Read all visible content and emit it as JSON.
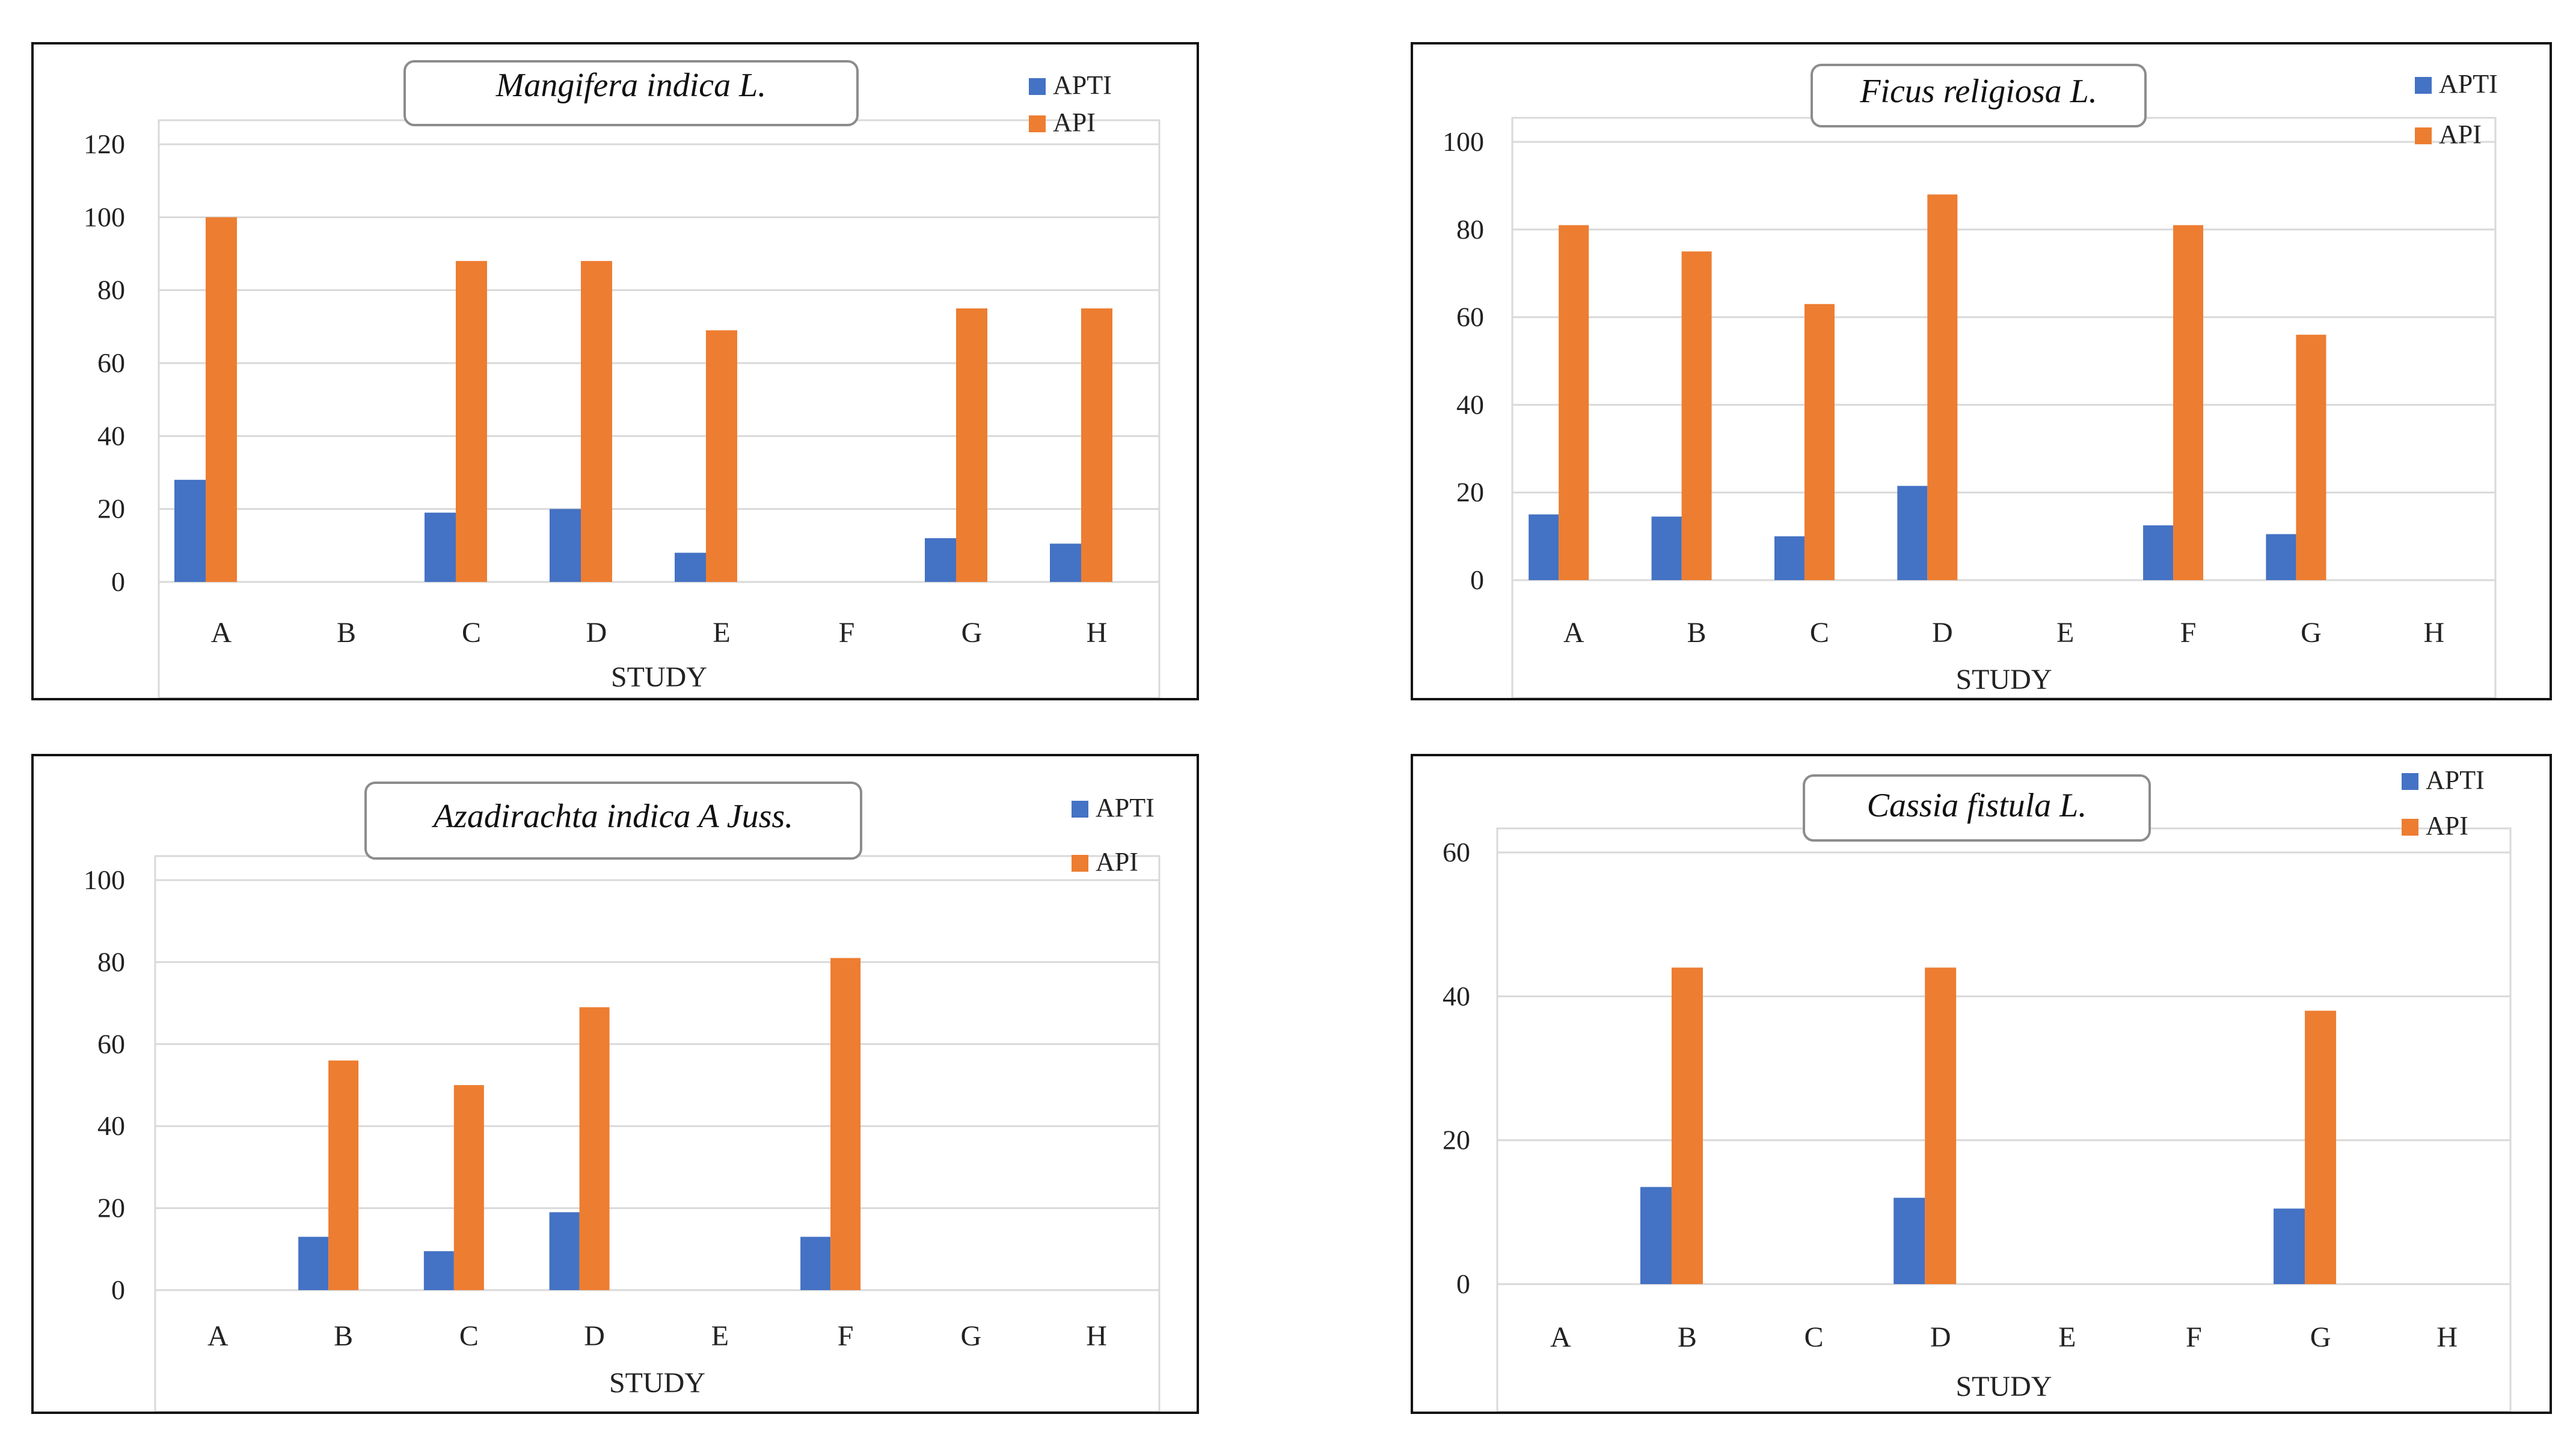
{
  "chart_data": [
    {
      "type": "bar",
      "title": "Mangifera indica L.",
      "xlabel": "STUDY",
      "ylabel": "",
      "categories": [
        "A",
        "B",
        "C",
        "D",
        "E",
        "F",
        "G",
        "H"
      ],
      "series": [
        {
          "name": "APTI",
          "color": "#4472C4",
          "values": [
            28,
            null,
            19,
            20,
            8,
            null,
            12,
            10.5
          ]
        },
        {
          "name": "API",
          "color": "#ED7D31",
          "values": [
            100,
            null,
            88,
            88,
            69,
            null,
            75,
            75
          ]
        }
      ],
      "yticks": [
        0,
        20,
        40,
        60,
        80,
        100,
        120
      ],
      "ylim": [
        0,
        120
      ],
      "grid": true,
      "legend": "top-right"
    },
    {
      "type": "bar",
      "title": "Ficus religiosa L.",
      "xlabel": "STUDY",
      "ylabel": "",
      "categories": [
        "A",
        "B",
        "C",
        "D",
        "E",
        "F",
        "G",
        "H"
      ],
      "series": [
        {
          "name": "APTI",
          "color": "#4472C4",
          "values": [
            15,
            14.5,
            10,
            21.5,
            null,
            12.5,
            10.5,
            null
          ]
        },
        {
          "name": "API",
          "color": "#ED7D31",
          "values": [
            81,
            75,
            63,
            88,
            null,
            81,
            56,
            null
          ]
        }
      ],
      "yticks": [
        0,
        20,
        40,
        60,
        80,
        100
      ],
      "ylim": [
        0,
        100
      ],
      "grid": true,
      "legend": "top-right"
    },
    {
      "type": "bar",
      "title": "Azadirachta indica A Juss.",
      "xlabel": "STUDY",
      "ylabel": "",
      "categories": [
        "A",
        "B",
        "C",
        "D",
        "E",
        "F",
        "G",
        "H"
      ],
      "series": [
        {
          "name": "APTI",
          "color": "#4472C4",
          "values": [
            null,
            13,
            9.5,
            19,
            null,
            13,
            null,
            null
          ]
        },
        {
          "name": "API",
          "color": "#ED7D31",
          "values": [
            null,
            56,
            50,
            69,
            null,
            81,
            null,
            null
          ]
        }
      ],
      "yticks": [
        0,
        20,
        40,
        60,
        80,
        100
      ],
      "ylim": [
        0,
        100
      ],
      "grid": true,
      "legend": "top-right"
    },
    {
      "type": "bar",
      "title": "Cassia fistula L.",
      "xlabel": "STUDY",
      "ylabel": "",
      "categories": [
        "A",
        "B",
        "C",
        "D",
        "E",
        "F",
        "G",
        "H"
      ],
      "series": [
        {
          "name": "APTI",
          "color": "#4472C4",
          "values": [
            null,
            13.5,
            null,
            12,
            null,
            null,
            10.5,
            null
          ]
        },
        {
          "name": "API",
          "color": "#ED7D31",
          "values": [
            null,
            44,
            null,
            44,
            null,
            null,
            38,
            null
          ]
        }
      ],
      "yticks": [
        0,
        20,
        40,
        60
      ],
      "ylim": [
        0,
        60
      ],
      "grid": true,
      "legend": "top-right"
    }
  ]
}
